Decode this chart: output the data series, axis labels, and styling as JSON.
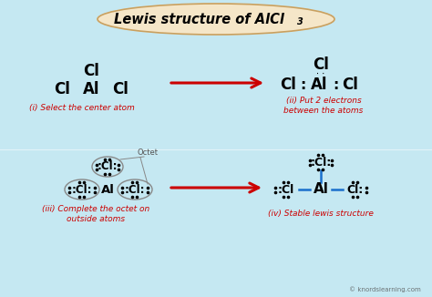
{
  "bg_color": "#c5e8f0",
  "title_bg": "#f5e6c8",
  "title_border": "#c8a060",
  "arrow_color": "#cc0000",
  "label_color": "#cc0000",
  "blue_color": "#1a6fcc",
  "gray_color": "#888888",
  "watermark": "© knordslearning.com",
  "title_main": "Lewis structure of AlCl",
  "title_sub": "3"
}
